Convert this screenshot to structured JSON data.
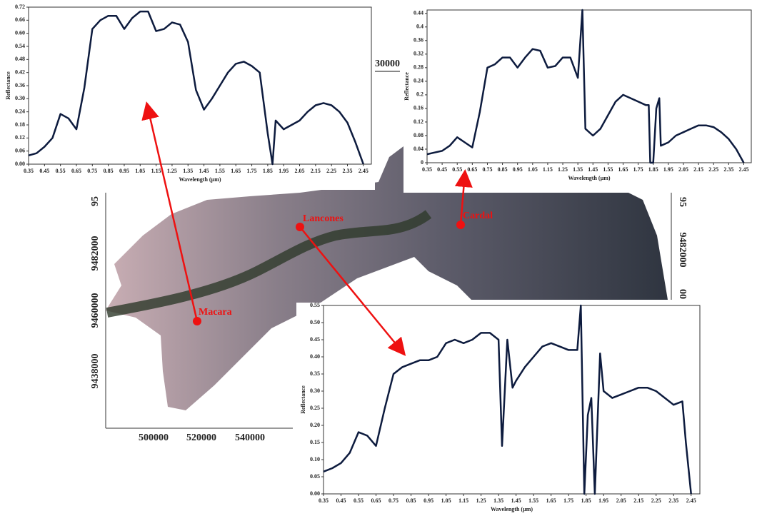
{
  "chart_data": [
    {
      "type": "line",
      "y_label": "Reflectance",
      "x_label": "Wavelength (µm)",
      "color": "#0d1b3e",
      "x": [
        0.35,
        0.4,
        0.45,
        0.5,
        0.55,
        0.6,
        0.65,
        0.7,
        0.75,
        0.8,
        0.85,
        0.9,
        0.95,
        1.0,
        1.05,
        1.1,
        1.15,
        1.2,
        1.25,
        1.3,
        1.35,
        1.4,
        1.45,
        1.5,
        1.55,
        1.6,
        1.65,
        1.7,
        1.75,
        1.8,
        1.85,
        1.88,
        1.9,
        1.95,
        2.0,
        2.05,
        2.1,
        2.15,
        2.2,
        2.25,
        2.3,
        2.35,
        2.4,
        2.45
      ],
      "values": [
        0.04,
        0.05,
        0.08,
        0.12,
        0.23,
        0.21,
        0.16,
        0.35,
        0.62,
        0.66,
        0.68,
        0.68,
        0.62,
        0.67,
        0.7,
        0.7,
        0.61,
        0.62,
        0.65,
        0.64,
        0.56,
        0.34,
        0.25,
        0.3,
        0.36,
        0.42,
        0.46,
        0.47,
        0.45,
        0.42,
        0.14,
        0.0,
        0.2,
        0.16,
        0.18,
        0.2,
        0.24,
        0.27,
        0.28,
        0.27,
        0.24,
        0.19,
        0.1,
        0.0
      ],
      "xlim": [
        0.35,
        2.5
      ],
      "xticks": [
        0.35,
        0.45,
        0.55,
        0.65,
        0.75,
        0.85,
        0.95,
        1.05,
        1.15,
        1.25,
        1.35,
        1.45,
        1.55,
        1.65,
        1.75,
        1.85,
        1.95,
        2.05,
        2.15,
        2.25,
        2.35,
        2.45
      ],
      "ylim": [
        0,
        0.72
      ],
      "yticks": [
        {
          "value": 0,
          "label": "0.00"
        },
        0.06,
        0.12,
        0.18,
        0.24,
        {
          "value": 0.3,
          "label": "0.30"
        },
        0.36,
        0.42,
        0.48,
        0.54,
        {
          "value": 0.6,
          "label": "0.60"
        },
        0.66,
        0.72
      ]
    },
    {
      "type": "line",
      "y_label": "Reflectance",
      "x_label": "Wavelength (µm)",
      "color": "#0d1b3e",
      "x": [
        0.35,
        0.4,
        0.45,
        0.5,
        0.55,
        0.6,
        0.65,
        0.7,
        0.75,
        0.8,
        0.85,
        0.9,
        0.95,
        1.0,
        1.05,
        1.1,
        1.15,
        1.2,
        1.25,
        1.3,
        1.35,
        1.38,
        1.4,
        1.45,
        1.5,
        1.55,
        1.6,
        1.65,
        1.7,
        1.75,
        1.8,
        1.82,
        1.83,
        1.85,
        1.87,
        1.89,
        1.9,
        1.95,
        2.0,
        2.05,
        2.1,
        2.15,
        2.2,
        2.25,
        2.3,
        2.35,
        2.4,
        2.45
      ],
      "values": [
        0.025,
        0.03,
        0.035,
        0.05,
        0.075,
        0.06,
        0.045,
        0.15,
        0.28,
        0.29,
        0.31,
        0.31,
        0.28,
        0.31,
        0.335,
        0.33,
        0.28,
        0.285,
        0.31,
        0.31,
        0.25,
        0.45,
        0.1,
        0.08,
        0.1,
        0.14,
        0.18,
        0.2,
        0.19,
        0.18,
        0.17,
        0.17,
        0,
        0,
        0.16,
        0.19,
        0.05,
        0.06,
        0.08,
        0.09,
        0.1,
        0.11,
        0.11,
        0.105,
        0.09,
        0.07,
        0.04,
        0
      ],
      "xlim": [
        0.35,
        2.5
      ],
      "xticks": [
        0.35,
        0.45,
        0.55,
        0.65,
        0.75,
        0.85,
        0.95,
        1.05,
        1.15,
        1.25,
        1.35,
        1.45,
        1.55,
        1.65,
        1.75,
        1.85,
        1.95,
        2.05,
        2.15,
        2.25,
        2.35,
        2.45
      ],
      "ylim": [
        0,
        0.45
      ],
      "yticks": [
        0,
        0.04,
        0.08,
        0.12,
        0.16,
        0.2,
        0.24,
        0.28,
        0.32,
        0.36,
        0.4,
        0.44
      ]
    },
    {
      "type": "line",
      "y_label": "Reflectance",
      "x_label": "Wavelength (µm)",
      "color": "#0d1b3e",
      "x": [
        0.35,
        0.4,
        0.45,
        0.5,
        0.55,
        0.6,
        0.65,
        0.7,
        0.75,
        0.8,
        0.85,
        0.9,
        0.95,
        1.0,
        1.05,
        1.1,
        1.15,
        1.2,
        1.25,
        1.3,
        1.35,
        1.37,
        1.4,
        1.43,
        1.45,
        1.5,
        1.55,
        1.6,
        1.65,
        1.7,
        1.75,
        1.8,
        1.82,
        1.84,
        1.86,
        1.88,
        1.9,
        1.93,
        1.95,
        2.0,
        2.05,
        2.1,
        2.15,
        2.2,
        2.25,
        2.3,
        2.35,
        2.4,
        2.42,
        2.45
      ],
      "values": [
        0.065,
        0.075,
        0.09,
        0.12,
        0.18,
        0.17,
        0.14,
        0.25,
        0.35,
        0.37,
        0.38,
        0.39,
        0.39,
        0.4,
        0.44,
        0.45,
        0.44,
        0.45,
        0.47,
        0.47,
        0.45,
        0.14,
        0.45,
        0.31,
        0.33,
        0.37,
        0.4,
        0.43,
        0.44,
        0.43,
        0.42,
        0.42,
        0.55,
        0,
        0.23,
        0.28,
        0,
        0.41,
        0.3,
        0.28,
        0.29,
        0.3,
        0.31,
        0.31,
        0.3,
        0.28,
        0.26,
        0.27,
        0.15,
        0
      ],
      "xlim": [
        0.35,
        2.5
      ],
      "xticks": [
        0.35,
        0.45,
        0.55,
        0.65,
        0.75,
        0.85,
        0.95,
        1.05,
        1.15,
        1.25,
        1.35,
        1.45,
        1.55,
        1.65,
        1.75,
        1.85,
        1.95,
        2.05,
        2.15,
        2.25,
        2.35,
        2.45
      ],
      "ylim": [
        0,
        0.55
      ],
      "yticks": [
        {
          "value": 0,
          "label": "0.00"
        },
        0.05,
        {
          "value": 0.1,
          "label": "0.10"
        },
        0.15,
        {
          "value": 0.2,
          "label": "0.20"
        },
        0.25,
        {
          "value": 0.3,
          "label": "0.30"
        },
        0.35,
        {
          "value": 0.4,
          "label": "0.40"
        },
        0.45,
        {
          "value": 0.5,
          "label": "0.50"
        },
        0.55
      ]
    }
  ],
  "map": {
    "bottom_ticks": [
      "500000",
      "520000",
      "540000"
    ],
    "left_ticks": [
      "95",
      "9482000",
      "9460000",
      "9438000"
    ],
    "right_ticks": [
      "95",
      "9482000",
      "00"
    ],
    "scale_label": "30000",
    "places": [
      "Lancones",
      "Cardal",
      "Macara"
    ]
  }
}
